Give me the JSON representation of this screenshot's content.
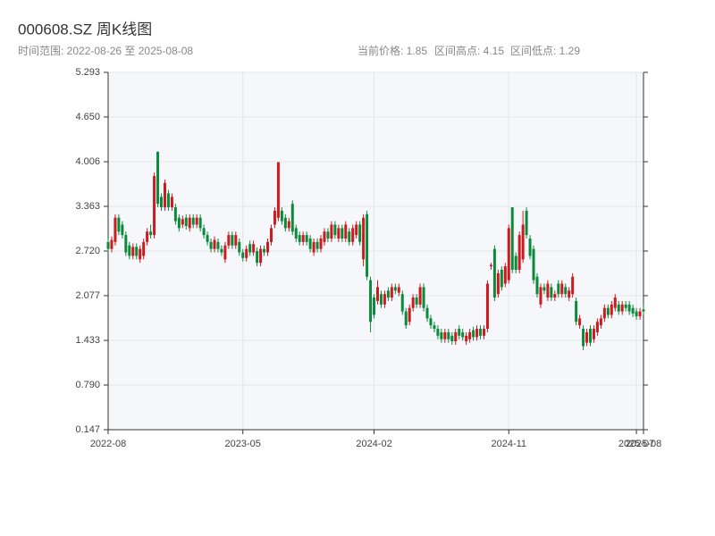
{
  "chart_data": {
    "type": "candlestick",
    "title": "000608.SZ 周K线图",
    "subtitle": "时间范围: 2022-08-26 至 2025-08-08",
    "info": [
      "当前价格: 1.85",
      "区间高点: 4.15",
      "区间低点: 1.29"
    ],
    "up_color": "#cc1a1f",
    "down_color": "#0b8a3c",
    "ylim": [
      0.147,
      5.293
    ],
    "yticks": [
      0.147,
      {
        "value": 0.79,
        "label": "0.790"
      },
      1.433,
      2.077,
      {
        "value": 2.72,
        "label": "2.720"
      },
      3.363,
      4.006,
      {
        "value": 4.65,
        "label": "4.650"
      },
      5.293
    ],
    "grid": true,
    "x": [
      "2022-08",
      null,
      null,
      null,
      null,
      null,
      null,
      null,
      null,
      null,
      null,
      null,
      null,
      null,
      null,
      null,
      null,
      null,
      null,
      null,
      null,
      null,
      null,
      null,
      null,
      null,
      null,
      null,
      null,
      null,
      null,
      null,
      null,
      null,
      null,
      null,
      null,
      null,
      "2023-05",
      null,
      null,
      null,
      null,
      null,
      null,
      null,
      null,
      null,
      null,
      null,
      null,
      null,
      null,
      null,
      null,
      null,
      null,
      null,
      null,
      null,
      null,
      null,
      null,
      null,
      null,
      null,
      null,
      null,
      null,
      null,
      null,
      null,
      null,
      null,
      null,
      "2024-02",
      null,
      null,
      null,
      null,
      null,
      null,
      null,
      null,
      null,
      null,
      null,
      null,
      null,
      null,
      null,
      null,
      null,
      null,
      null,
      null,
      null,
      null,
      null,
      null,
      null,
      null,
      null,
      null,
      null,
      null,
      null,
      null,
      null,
      null,
      null,
      null,
      null,
      "2024-11",
      null,
      null,
      null,
      null,
      null,
      null,
      null,
      null,
      null,
      null,
      null,
      null,
      null,
      null,
      null,
      null,
      null,
      null,
      null,
      null,
      null,
      null,
      null,
      null,
      null,
      null,
      null,
      null,
      null,
      null,
      null,
      null,
      null,
      null,
      null,
      "2025-07",
      null,
      "2025-08"
    ],
    "open": [
      2.85,
      2.75,
      2.85,
      3.2,
      3.1,
      2.95,
      2.8,
      2.65,
      2.78,
      2.6,
      2.65,
      2.85,
      3.0,
      2.95,
      4.15,
      3.5,
      3.35,
      3.55,
      3.35,
      3.35,
      3.2,
      3.1,
      3.2,
      3.05,
      3.2,
      3.1,
      3.2,
      3.05,
      2.95,
      2.85,
      2.75,
      2.85,
      2.75,
      2.6,
      2.8,
      2.95,
      2.8,
      2.85,
      2.7,
      2.62,
      2.82,
      2.7,
      2.72,
      2.55,
      2.75,
      2.7,
      2.85,
      3.1,
      3.2,
      3.3,
      3.2,
      3.05,
      3.4,
      3.05,
      2.95,
      2.85,
      2.95,
      2.9,
      2.7,
      2.85,
      2.75,
      2.85,
      3.0,
      2.9,
      3.1,
      2.9,
      3.05,
      2.9,
      3.0,
      2.85,
      2.95,
      3.1,
      2.6,
      3.25,
      2.3,
      2.05,
      2.0,
      2.1,
      1.95,
      2.15,
      2.05,
      2.2,
      2.12,
      2.1,
      1.85,
      1.7,
      1.9,
      2.05,
      1.95,
      2.2,
      1.9,
      1.75,
      1.65,
      1.6,
      1.55,
      1.45,
      1.55,
      1.5,
      1.42,
      1.6,
      1.55,
      1.42,
      1.45,
      1.58,
      1.48,
      1.6,
      1.5,
      1.6,
      2.5,
      2.75,
      2.1,
      2.45,
      2.25,
      2.3,
      3.35,
      2.65,
      2.45,
      2.6,
      3.3,
      2.9,
      2.75,
      2.35,
      1.95,
      2.2,
      2.05,
      2.2,
      2.05,
      2.25,
      2.1,
      2.2,
      2.05,
      2.1,
      2.0,
      1.65,
      1.6,
      1.4,
      1.6,
      1.45,
      1.55,
      1.65,
      1.75,
      1.9,
      1.8,
      1.9,
      1.95,
      1.85,
      1.95,
      1.95,
      1.9,
      1.85,
      1.78,
      1.88
    ],
    "high": [
      2.9,
      2.93,
      3.25,
      3.25,
      3.15,
      3.0,
      2.85,
      2.83,
      2.83,
      2.8,
      2.9,
      3.05,
      3.1,
      3.85,
      4.15,
      3.55,
      3.75,
      3.6,
      3.55,
      3.4,
      3.25,
      3.23,
      3.25,
      3.25,
      3.25,
      3.25,
      3.25,
      3.1,
      3.0,
      2.9,
      2.93,
      2.9,
      2.8,
      2.85,
      3.0,
      3.0,
      3.0,
      2.9,
      2.75,
      2.8,
      2.87,
      2.87,
      2.77,
      2.8,
      2.8,
      2.9,
      3.1,
      3.35,
      4.0,
      3.35,
      3.25,
      3.2,
      3.45,
      3.1,
      3.0,
      3.0,
      3.0,
      2.95,
      2.9,
      2.9,
      2.95,
      3.05,
      3.05,
      3.15,
      3.15,
      3.1,
      3.1,
      3.15,
      3.05,
      3.1,
      3.15,
      3.15,
      3.25,
      3.3,
      2.35,
      2.1,
      2.3,
      2.15,
      2.15,
      2.2,
      2.25,
      2.25,
      2.25,
      2.15,
      1.9,
      1.95,
      2.1,
      2.1,
      2.25,
      2.25,
      1.95,
      1.8,
      1.7,
      1.65,
      1.6,
      1.6,
      1.6,
      1.55,
      1.6,
      1.65,
      1.6,
      1.55,
      1.6,
      1.63,
      1.65,
      1.65,
      1.65,
      2.3,
      2.55,
      2.8,
      2.45,
      2.5,
      2.55,
      3.1,
      3.35,
      2.7,
      3.0,
      3.3,
      3.35,
      2.95,
      2.8,
      2.4,
      2.25,
      2.25,
      2.3,
      2.25,
      2.15,
      2.3,
      2.3,
      2.25,
      2.2,
      2.4,
      2.05,
      1.8,
      1.65,
      1.6,
      1.65,
      1.65,
      1.75,
      1.8,
      1.95,
      1.95,
      2.0,
      2.1,
      2.0,
      2.0,
      2.0,
      2.0,
      1.95,
      1.9,
      1.9,
      1.93
    ],
    "low": [
      2.7,
      2.7,
      2.8,
      2.95,
      2.9,
      2.65,
      2.6,
      2.6,
      2.6,
      2.55,
      2.6,
      2.8,
      2.9,
      2.9,
      3.35,
      3.3,
      3.3,
      3.3,
      3.3,
      3.1,
      3.0,
      3.05,
      3.03,
      3.0,
      3.05,
      3.05,
      3.0,
      2.9,
      2.8,
      2.7,
      2.7,
      2.7,
      2.65,
      2.55,
      2.75,
      2.75,
      2.75,
      2.65,
      2.57,
      2.57,
      2.65,
      2.65,
      2.5,
      2.5,
      2.65,
      2.65,
      2.8,
      3.05,
      3.15,
      3.1,
      3.0,
      3.0,
      2.95,
      2.85,
      2.8,
      2.8,
      2.8,
      2.7,
      2.65,
      2.7,
      2.7,
      2.8,
      2.85,
      2.85,
      2.9,
      2.85,
      2.85,
      2.85,
      2.8,
      2.8,
      2.9,
      2.8,
      2.5,
      2.3,
      1.55,
      1.75,
      1.95,
      1.9,
      1.9,
      2.0,
      2.0,
      2.1,
      2.07,
      1.8,
      1.6,
      1.65,
      1.85,
      1.9,
      1.9,
      1.85,
      1.7,
      1.6,
      1.55,
      1.45,
      1.4,
      1.4,
      1.4,
      1.37,
      1.37,
      1.45,
      1.43,
      1.37,
      1.4,
      1.43,
      1.43,
      1.45,
      1.45,
      1.55,
      2.45,
      2.0,
      2.05,
      2.15,
      2.2,
      2.25,
      2.4,
      2.4,
      2.4,
      2.55,
      2.9,
      2.6,
      2.25,
      2.05,
      1.9,
      2.1,
      2.0,
      2.0,
      2.0,
      2.05,
      2.05,
      2.05,
      2.0,
      2.05,
      1.65,
      1.6,
      1.29,
      1.35,
      1.35,
      1.4,
      1.5,
      1.6,
      1.7,
      1.75,
      1.75,
      1.85,
      1.8,
      1.8,
      1.85,
      1.8,
      1.77,
      1.73,
      1.73,
      1.8
    ],
    "close": [
      2.75,
      2.88,
      3.2,
      3.0,
      2.95,
      2.7,
      2.65,
      2.78,
      2.65,
      2.75,
      2.85,
      3.0,
      2.95,
      3.8,
      3.4,
      3.35,
      3.7,
      3.35,
      3.5,
      3.15,
      3.05,
      3.18,
      3.08,
      3.2,
      3.1,
      3.2,
      3.05,
      2.95,
      2.85,
      2.75,
      2.88,
      2.75,
      2.7,
      2.8,
      2.95,
      2.8,
      2.95,
      2.7,
      2.62,
      2.75,
      2.7,
      2.82,
      2.55,
      2.75,
      2.7,
      2.85,
      3.05,
      3.3,
      4.0,
      3.15,
      3.05,
      3.15,
      3.0,
      2.9,
      2.85,
      2.95,
      2.85,
      2.75,
      2.85,
      2.75,
      2.9,
      3.0,
      2.9,
      3.1,
      2.95,
      3.05,
      2.9,
      3.1,
      2.85,
      3.05,
      3.1,
      2.85,
      3.2,
      2.35,
      1.7,
      1.8,
      2.2,
      1.95,
      2.1,
      2.05,
      2.2,
      2.15,
      2.2,
      1.85,
      1.65,
      1.9,
      2.05,
      1.95,
      2.2,
      1.9,
      1.75,
      1.65,
      1.6,
      1.5,
      1.45,
      1.55,
      1.45,
      1.42,
      1.55,
      1.5,
      1.48,
      1.5,
      1.55,
      1.48,
      1.6,
      1.5,
      1.6,
      2.25,
      2.52,
      2.05,
      2.4,
      2.2,
      2.5,
      3.05,
      2.45,
      2.45,
      2.95,
      3.1,
      2.95,
      2.65,
      2.3,
      2.1,
      2.2,
      2.15,
      2.25,
      2.05,
      2.1,
      2.1,
      2.25,
      2.1,
      2.15,
      2.35,
      1.7,
      1.75,
      1.35,
      1.55,
      1.4,
      1.6,
      1.7,
      1.75,
      1.9,
      1.8,
      1.95,
      2.05,
      1.85,
      1.95,
      1.9,
      1.85,
      1.82,
      1.78,
      1.85,
      1.85
    ]
  }
}
